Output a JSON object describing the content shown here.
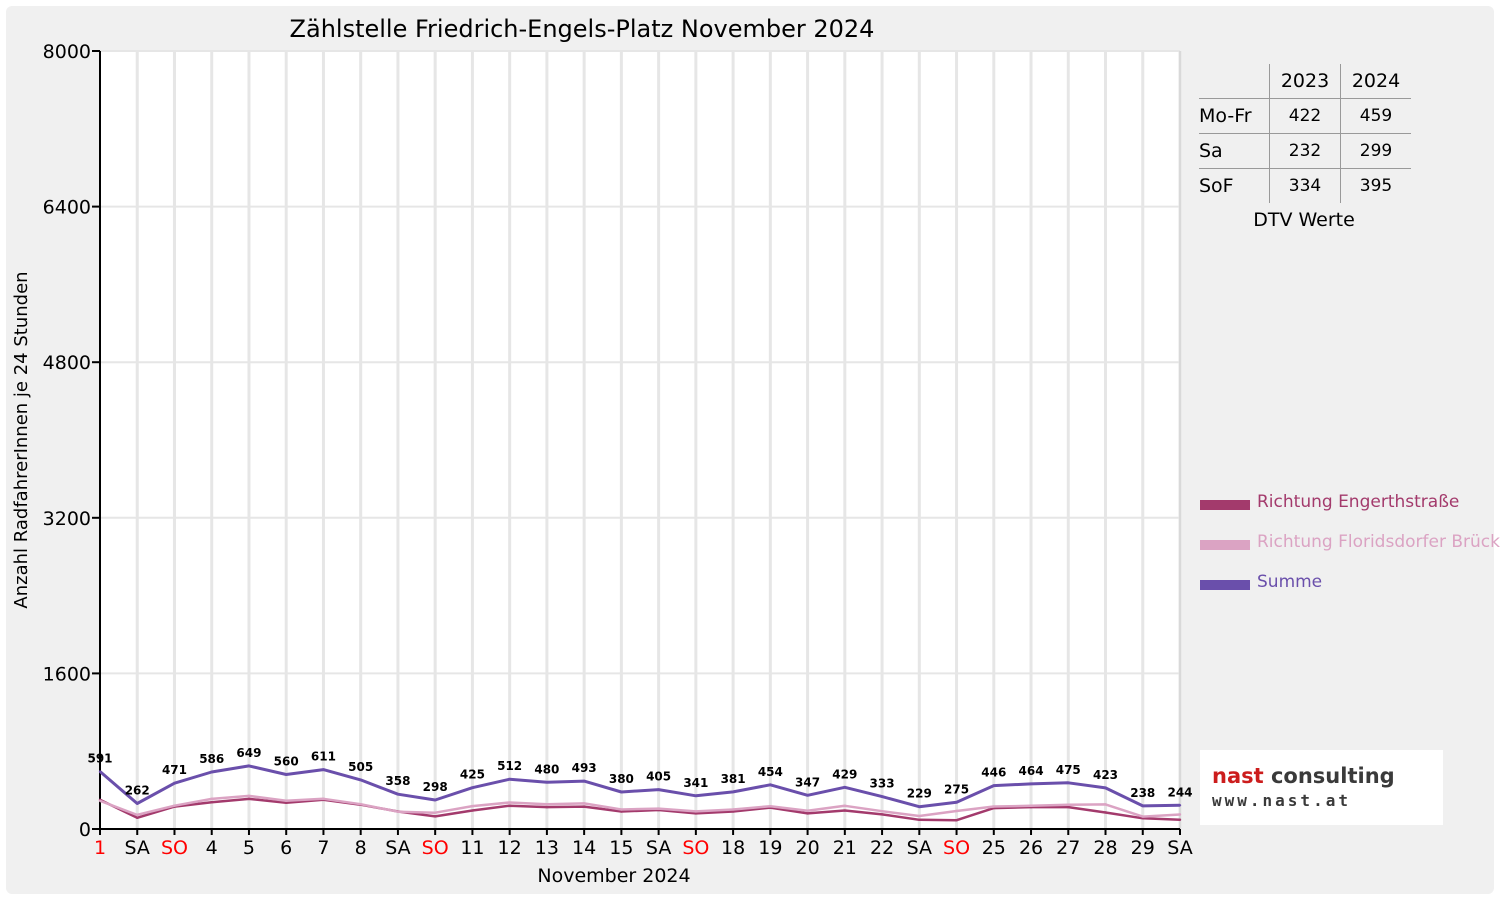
{
  "chart_data": {
    "type": "line",
    "title": "Zählstelle Friedrich-Engels-Platz November 2024",
    "xlabel": "November 2024",
    "ylabel": "Anzahl RadfahrerInnen je 24 Stunden",
    "ylim": [
      0,
      8000
    ],
    "yticks": [
      "8000",
      "6400",
      "4800",
      "3200",
      "1600",
      "0"
    ],
    "ytick_values": [
      8000,
      6400,
      4800,
      3200,
      1600,
      0
    ],
    "grid": true,
    "legend_position": "right",
    "categories": [
      "1",
      "SA",
      "SO",
      "4",
      "5",
      "6",
      "7",
      "8",
      "SA",
      "SO",
      "11",
      "12",
      "13",
      "14",
      "15",
      "SA",
      "SO",
      "18",
      "19",
      "20",
      "21",
      "22",
      "SA",
      "SO",
      "25",
      "26",
      "27",
      "28",
      "29",
      "SA"
    ],
    "category_colors": [
      "#ff0000",
      "#000000",
      "#ff0000",
      "#000000",
      "#000000",
      "#000000",
      "#000000",
      "#000000",
      "#000000",
      "#ff0000",
      "#000000",
      "#000000",
      "#000000",
      "#000000",
      "#000000",
      "#000000",
      "#ff0000",
      "#000000",
      "#000000",
      "#000000",
      "#000000",
      "#000000",
      "#000000",
      "#ff0000",
      "#000000",
      "#000000",
      "#000000",
      "#000000",
      "#000000",
      "#000000"
    ],
    "series": [
      {
        "name": "Richtung Engerthstraße",
        "color": "#a33a6c",
        "values": [
          300,
          115,
          230,
          275,
          310,
          270,
          300,
          250,
          180,
          130,
          190,
          240,
          225,
          230,
          180,
          195,
          160,
          180,
          220,
          160,
          190,
          150,
          95,
          90,
          215,
          225,
          225,
          170,
          110,
          95
        ]
      },
      {
        "name": "Richtung Floridsdorfer Brücke",
        "color": "#dba3c3",
        "values": [
          290,
          145,
          240,
          310,
          340,
          290,
          311,
          255,
          178,
          168,
          235,
          272,
          255,
          263,
          200,
          210,
          181,
          201,
          234,
          187,
          239,
          183,
          134,
          185,
          231,
          239,
          250,
          253,
          128,
          149
        ]
      },
      {
        "name": "Summe",
        "color": "#6a4fab",
        "values": [
          591,
          262,
          471,
          586,
          649,
          560,
          611,
          505,
          358,
          298,
          425,
          512,
          480,
          493,
          380,
          405,
          341,
          381,
          454,
          347,
          429,
          333,
          229,
          275,
          446,
          464,
          475,
          423,
          238,
          244
        ],
        "labels": [
          "591",
          "262",
          "471",
          "586",
          "649",
          "560",
          "611",
          "505",
          "358",
          "298",
          "425",
          "512",
          "480",
          "493",
          "380",
          "405",
          "341",
          "381",
          "454",
          "347",
          "429",
          "333",
          "229",
          "275",
          "446",
          "464",
          "475",
          "423",
          "238",
          "244"
        ]
      }
    ]
  },
  "dtv_table": {
    "columns": [
      "2023",
      "2024"
    ],
    "rows": [
      {
        "label": "Mo-Fr",
        "v2023": "422",
        "v2024": "459"
      },
      {
        "label": "Sa",
        "v2023": "232",
        "v2024": "299"
      },
      {
        "label": "SoF",
        "v2023": "334",
        "v2024": "395"
      }
    ],
    "caption": "DTV Werte"
  },
  "legend": [
    {
      "label": "Richtung Engerthstraße",
      "color": "#a33a6c"
    },
    {
      "label": "Richtung Floridsdorfer Brücke",
      "color": "#dba3c3"
    },
    {
      "label": "Summe",
      "color": "#6a4fab"
    }
  ],
  "logo": {
    "part1": "nast",
    "part2": "consulting",
    "url": "www.nast.at"
  }
}
